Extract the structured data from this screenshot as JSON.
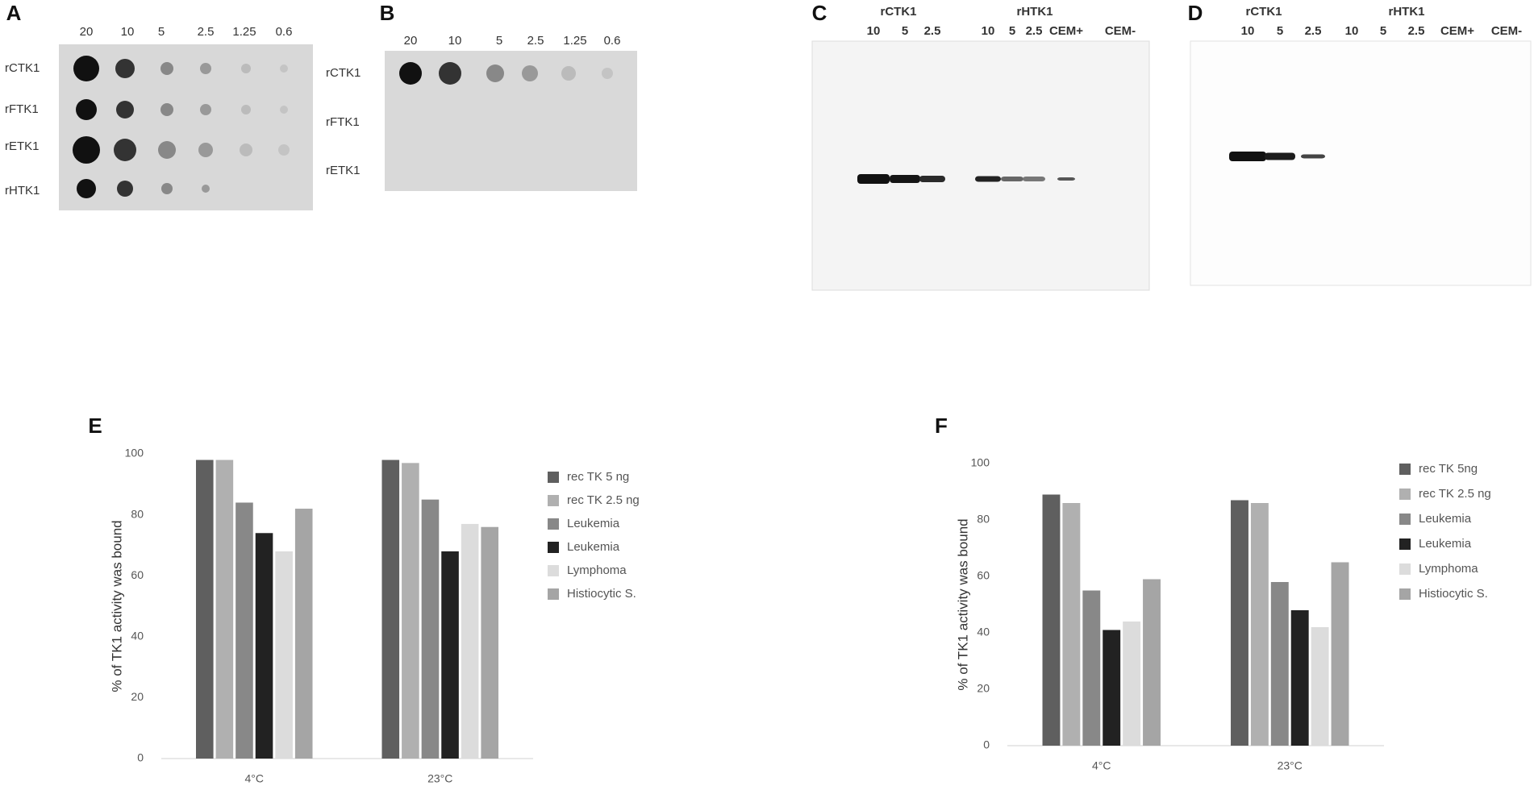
{
  "blots": [
    {
      "label": "A",
      "columns": [
        "20",
        "10",
        "5",
        "2.5",
        "1.25",
        "0.6"
      ],
      "rows": [
        "rCTK1",
        "rFTK1",
        "rETK1",
        "rHTK1"
      ]
    },
    {
      "label": "B",
      "columns": [
        "20",
        "10",
        "5",
        "2.5",
        "1.25",
        "0.6"
      ],
      "rows": [
        "rCTK1",
        "rFTK1",
        "rETK1"
      ]
    },
    {
      "label": "C",
      "groups": [
        "rCTK1",
        "rHTK1"
      ],
      "lanes": [
        "10",
        "5",
        "2.5",
        "10",
        "5",
        "2.5",
        "CEM+",
        "CEM-"
      ]
    },
    {
      "label": "D",
      "groups": [
        "rCTK1",
        "rHTK1"
      ],
      "lanes": [
        "10",
        "5",
        "2.5",
        "10",
        "5",
        "2.5",
        "CEM+",
        "CEM-"
      ]
    }
  ],
  "chart_data": [
    {
      "type": "bar",
      "panel": "E",
      "ylabel": "% of TK1 activity was bound",
      "categories": [
        "4°C",
        "23°C"
      ],
      "series": [
        {
          "name": "rec TK 5 ng",
          "color": "#5f5f5f",
          "values": [
            98,
            98
          ]
        },
        {
          "name": "rec TK 2.5 ng",
          "color": "#b0b0b0",
          "values": [
            98,
            97
          ]
        },
        {
          "name": "Leukemia",
          "color": "#888888",
          "values": [
            84,
            85
          ]
        },
        {
          "name": "Leukemia",
          "color": "#222222",
          "values": [
            74,
            68
          ]
        },
        {
          "name": "Lymphoma",
          "color": "#dcdcdc",
          "values": [
            68,
            77
          ]
        },
        {
          "name": "Histiocytic S.",
          "color": "#a5a5a5",
          "values": [
            82,
            76
          ]
        }
      ],
      "ylim": [
        0,
        100
      ],
      "yticks": [
        0,
        20,
        40,
        60,
        80,
        100
      ]
    },
    {
      "type": "bar",
      "panel": "F",
      "ylabel": "% of TK1 activity was bound",
      "categories": [
        "4°C",
        "23°C"
      ],
      "series": [
        {
          "name": "rec TK 5ng",
          "color": "#5f5f5f",
          "values": [
            89,
            87
          ]
        },
        {
          "name": "rec TK 2.5 ng",
          "color": "#b0b0b0",
          "values": [
            86,
            86
          ]
        },
        {
          "name": "Leukemia",
          "color": "#888888",
          "values": [
            55,
            58
          ]
        },
        {
          "name": "Leukemia",
          "color": "#222222",
          "values": [
            41,
            48
          ]
        },
        {
          "name": "Lymphoma",
          "color": "#dcdcdc",
          "values": [
            44,
            42
          ]
        },
        {
          "name": "Histiocytic S.",
          "color": "#a5a5a5",
          "values": [
            59,
            65
          ]
        }
      ],
      "ylim": [
        0,
        100
      ],
      "yticks": [
        0,
        20,
        40,
        60,
        80,
        100
      ]
    }
  ]
}
